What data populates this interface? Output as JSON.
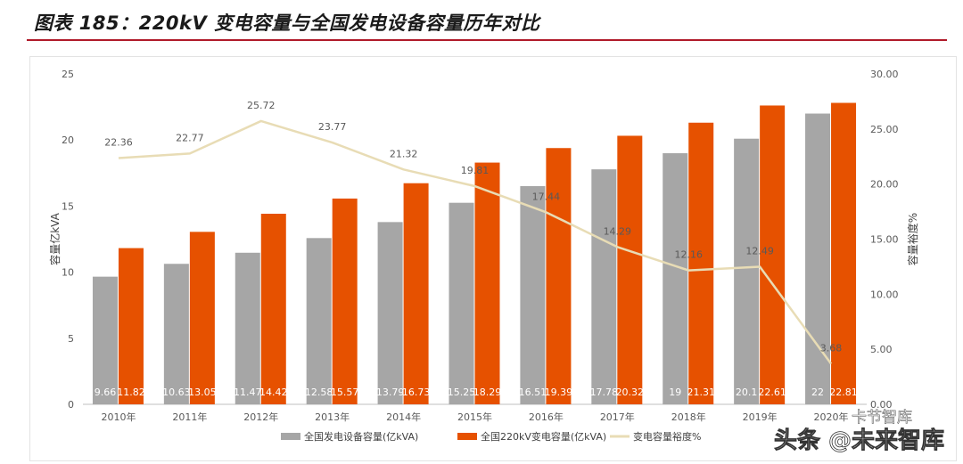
{
  "header": {
    "title": "图表 185：220kV 变电容量与全国发电设备容量历年对比"
  },
  "chart_data": {
    "type": "bar",
    "categories": [
      "2010年",
      "2011年",
      "2012年",
      "2013年",
      "2014年",
      "2015年",
      "2016年",
      "2017年",
      "2018年",
      "2019年",
      "2020年"
    ],
    "series": [
      {
        "name": "全国发电设备容量(亿kVA)",
        "type": "bar",
        "axis": "left",
        "color": "#a6a6a6",
        "values": [
          9.66,
          10.63,
          11.47,
          12.58,
          13.79,
          15.25,
          16.51,
          17.78,
          19,
          20.1,
          22
        ]
      },
      {
        "name": "全国220kV变电容量(亿kVA)",
        "type": "bar",
        "axis": "left",
        "color": "#e65100",
        "values": [
          11.82,
          13.05,
          14.42,
          15.57,
          16.73,
          18.29,
          19.39,
          20.32,
          21.31,
          22.61,
          22.81
        ]
      },
      {
        "name": "变电容量裕度%",
        "type": "line",
        "axis": "right",
        "color": "#e8dcb5",
        "values": [
          22.36,
          22.77,
          25.72,
          23.77,
          21.32,
          19.81,
          17.44,
          14.29,
          12.16,
          12.49,
          3.68
        ]
      }
    ],
    "ylabel": "容量亿kVA",
    "ylabel_right": "容量裕度%",
    "ylim": [
      0,
      25
    ],
    "ylim_right": [
      0,
      30
    ],
    "yticks": [
      "0",
      "5",
      "10",
      "15",
      "20",
      "25"
    ],
    "yticks_right": [
      "0.00",
      "5.00",
      "10.00",
      "15.00",
      "20.00",
      "25.00",
      "30.00"
    ],
    "bar_value_labels": [
      [
        "9.66",
        "10.63",
        "11.47",
        "12.58",
        "13.79",
        "15.25",
        "16.51",
        "17.78",
        "19",
        "20.1",
        "22"
      ],
      [
        "11.82",
        "13.05",
        "14.42",
        "15.57",
        "16.73",
        "18.29",
        "19.39",
        "20.32",
        "21.31",
        "22.61",
        "22.81"
      ]
    ],
    "line_value_labels": [
      "22.36",
      "22.77",
      "25.72",
      "23.77",
      "21.32",
      "19.81",
      "17.44",
      "14.29",
      "12.16",
      "12.49",
      "3.68"
    ],
    "grid": false,
    "legend": "bottom"
  },
  "watermarks": {
    "mark_1": "卡节智库",
    "mark_2": "头条 @未来智库"
  },
  "colors": {
    "title_rule": "#b01a2a",
    "bar_gray": "#a6a6a6",
    "bar_orange": "#e65100",
    "line": "#e8dcb5"
  }
}
